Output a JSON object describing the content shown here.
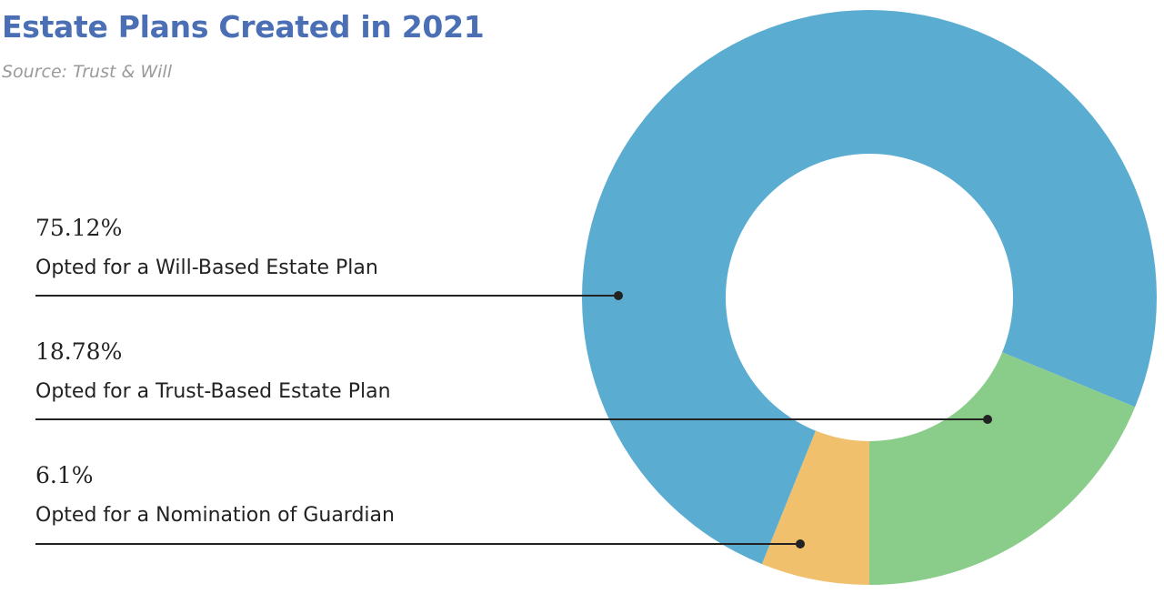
{
  "title": "Estate Plans Created in 2021",
  "subtitle": "Source: Trust & Will",
  "chart_data": {
    "type": "pie",
    "title": "Estate Plans Created in 2021",
    "subtitle": "Source: Trust & Will",
    "donut": true,
    "categories": [
      "Opted for a Will-Based Estate Plan",
      "Opted for a Trust-Based Estate Plan",
      "Opted for a Nomination of Guardian"
    ],
    "values": [
      75.12,
      18.78,
      6.1
    ],
    "labels": [
      "75.12%",
      "18.78%",
      "6.1%"
    ],
    "colors": [
      "#5aadd1",
      "#8acc8a",
      "#f0c06c"
    ],
    "legend": "left"
  }
}
